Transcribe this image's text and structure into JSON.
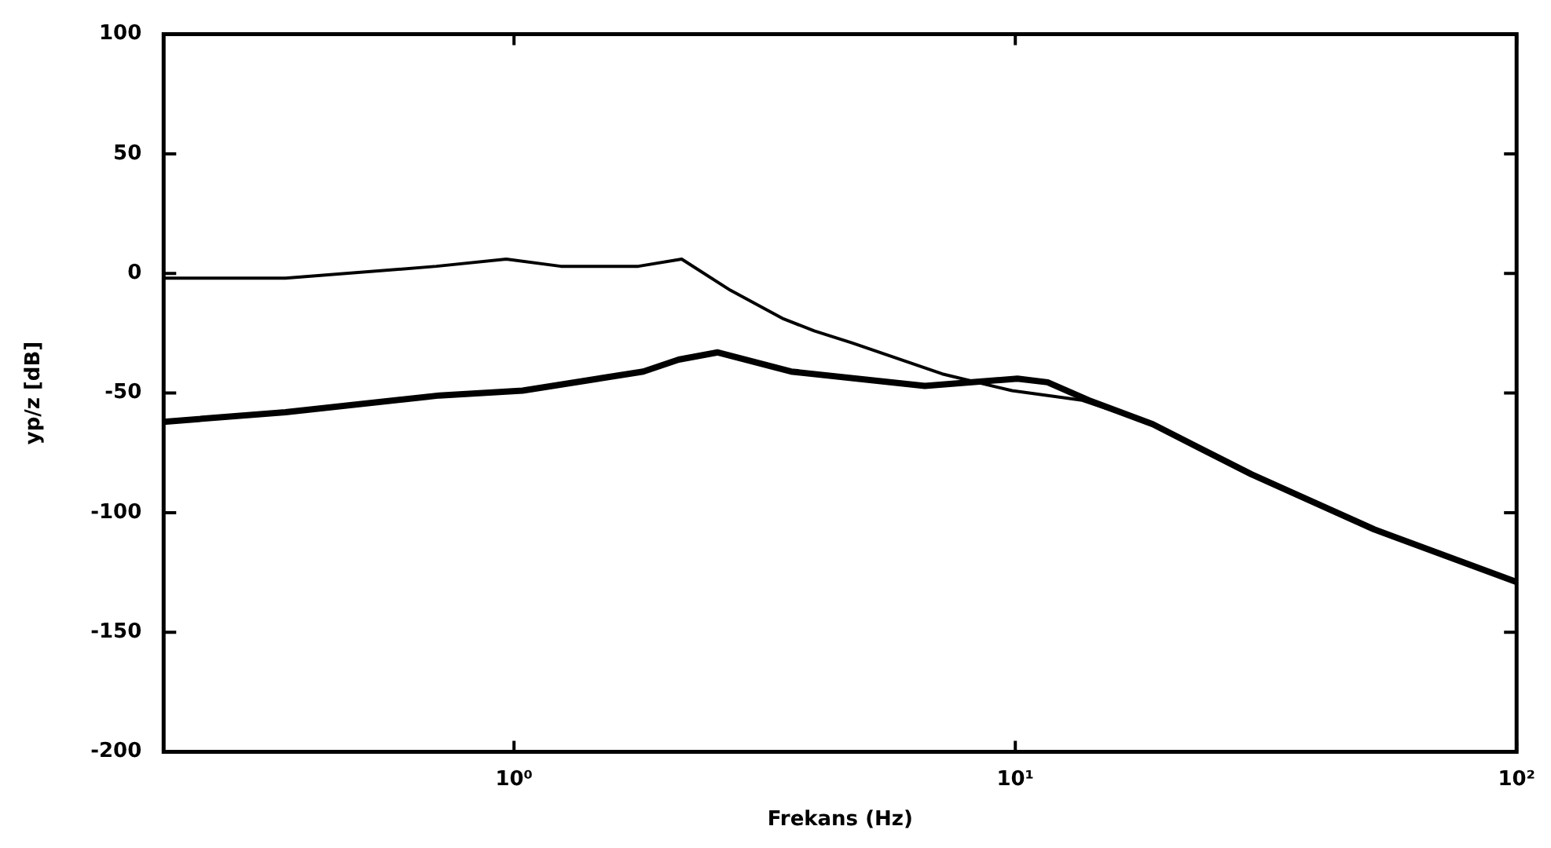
{
  "chart_data": {
    "type": "line",
    "xlabel": "Frekans (Hz)",
    "ylabel": "yp/z [dB]",
    "log": "x",
    "grid": false,
    "legend": false,
    "marker": "none",
    "line_style": "solid",
    "xlim": [
      0.2,
      100
    ],
    "xticks": [
      {
        "value": 1,
        "label": "10⁰"
      },
      {
        "value": 10,
        "label": "10¹"
      },
      {
        "value": 100,
        "label": "10²"
      }
    ],
    "ylim": [
      -200,
      100
    ],
    "yticks": [
      -200,
      -150,
      -100,
      -50,
      0,
      50,
      100
    ],
    "series": [
      {
        "color": "#000000",
        "x": [
          0.2,
          0.35,
          0.7,
          0.965,
          1.24,
          1.77,
          2.16,
          2.7,
          3.45,
          3.97,
          4.72,
          7.15,
          9.85,
          13.6,
          18.8,
          29.6,
          52,
          100
        ],
        "values": [
          -2,
          -2,
          3,
          6,
          3,
          3,
          6,
          -7,
          -19,
          -24,
          -29,
          -42,
          -49,
          -53,
          -63,
          -84,
          -107,
          -129
        ]
      },
      {
        "color": "#000000",
        "x": [
          0.2,
          0.35,
          0.71,
          1.04,
          1.81,
          2.13,
          2.55,
          3.57,
          6.6,
          10.1,
          11.6,
          14,
          18.8,
          29.6,
          52,
          100
        ],
        "values": [
          -62,
          -58,
          -51,
          -49,
          -41,
          -36,
          -33,
          -41,
          -47,
          -44,
          -45.5,
          -53,
          -63,
          -84,
          -107,
          -129
        ]
      }
    ]
  }
}
